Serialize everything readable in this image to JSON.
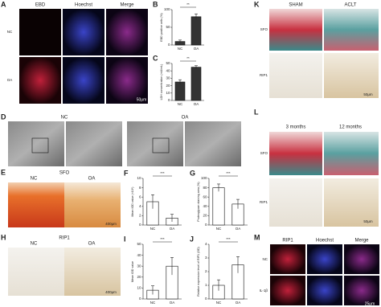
{
  "figure": {
    "A": {
      "label": "A",
      "columns": [
        "EBD",
        "Hoechst",
        "Merge"
      ],
      "rows": [
        "NC",
        "OA"
      ],
      "scale": "50μm"
    },
    "D": {
      "label": "D",
      "columns": [
        "NC",
        "OA"
      ]
    },
    "E": {
      "label": "E",
      "title": "SFO",
      "columns": [
        "NC",
        "OA"
      ],
      "scale": "400μm"
    },
    "H": {
      "label": "H",
      "title": "RIP1",
      "columns": [
        "NC",
        "OA"
      ],
      "scale": "400μm"
    },
    "K": {
      "label": "K",
      "columns": [
        "SHAM",
        "ACLT"
      ],
      "rows": [
        "SFO",
        "RIP1"
      ],
      "scale": "50μm"
    },
    "L": {
      "label": "L",
      "columns": [
        "3 months",
        "12 months"
      ],
      "rows": [
        "SFO",
        "RIP1"
      ],
      "scale": "50μm"
    },
    "M": {
      "label": "M",
      "columns": [
        "RIP1",
        "Hoechst",
        "Merge"
      ],
      "rows": [
        "NC",
        "IL-1β"
      ],
      "scale": "25μm"
    }
  },
  "chart_data": [
    {
      "type": "bar",
      "label": "B",
      "ylabel": "EBD positive cells (%)",
      "categories": [
        "NC",
        "OA"
      ],
      "values": [
        10,
        80
      ],
      "errors": [
        4,
        8
      ],
      "ylim": [
        0,
        100
      ],
      "yticks": [
        0,
        50,
        100
      ],
      "significance": "**",
      "color": "#333333"
    },
    {
      "type": "bar",
      "label": "C",
      "ylabel": "LDH concentration (mU/mL)",
      "categories": [
        "NC",
        "OA"
      ],
      "values": [
        25,
        45
      ],
      "errors": [
        3,
        2
      ],
      "ylim": [
        0,
        50
      ],
      "yticks": [
        0,
        10,
        20,
        30,
        40,
        50
      ],
      "significance": "**",
      "color": "#333333"
    },
    {
      "type": "bar",
      "label": "F",
      "ylabel": "Mean IOD value (×10⁴)",
      "categories": [
        "NC",
        "OA"
      ],
      "values": [
        5,
        1.5
      ],
      "errors": [
        1.5,
        0.8
      ],
      "ylim": [
        0,
        10
      ],
      "yticks": [
        0,
        2,
        4,
        6,
        8,
        10
      ],
      "significance": "***",
      "color": "#ffffff"
    },
    {
      "type": "bar",
      "label": "G",
      "ylabel": "Proteoglycan staining area (%)",
      "categories": [
        "NC",
        "OA"
      ],
      "values": [
        80,
        45
      ],
      "errors": [
        8,
        10
      ],
      "ylim": [
        0,
        100
      ],
      "yticks": [
        0,
        20,
        40,
        60,
        80,
        100
      ],
      "significance": "***",
      "color": "#ffffff"
    },
    {
      "type": "bar",
      "label": "I",
      "ylabel": "Mean IOD value",
      "categories": [
        "NC",
        "OA"
      ],
      "values": [
        8,
        30
      ],
      "errors": [
        4,
        8
      ],
      "ylim": [
        0,
        50
      ],
      "yticks": [
        0,
        10,
        20,
        30,
        40,
        50
      ],
      "significance": "***",
      "color": "#ffffff"
    },
    {
      "type": "bar",
      "label": "J",
      "ylabel": "Relative expression level of RIP1 (OD)",
      "categories": [
        "NC",
        "OA"
      ],
      "values": [
        1,
        2.5
      ],
      "errors": [
        0.4,
        0.6
      ],
      "ylim": [
        0,
        4
      ],
      "yticks": [
        0,
        1,
        2,
        3,
        4
      ],
      "significance": "***",
      "color": "#ffffff"
    }
  ]
}
